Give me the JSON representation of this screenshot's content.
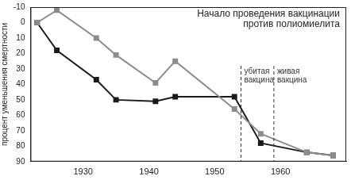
{
  "chart_data": {
    "type": "line",
    "title": "Начало проведения вакцинации против полиомиелита",
    "y_label": "процент уменьшения смертности",
    "x": [
      1923,
      1926,
      1932,
      1935,
      1941,
      1944,
      1953,
      1957,
      1964,
      1968
    ],
    "series": [
      {
        "color": "#8c8c8c",
        "marker": "square",
        "values": [
          0,
          -8,
          10,
          21,
          39,
          25,
          56,
          72,
          84,
          86
        ]
      },
      {
        "color": "#1a1a1a",
        "marker": "square",
        "values": [
          0,
          18,
          37,
          50,
          51,
          48,
          48,
          78,
          84,
          86
        ]
      }
    ],
    "xlim": [
      1922,
      1970
    ],
    "xticks": [
      1930,
      1940,
      1950,
      1960
    ],
    "ylim": [
      -10,
      90
    ],
    "yticks": [
      -10,
      0,
      10,
      20,
      30,
      40,
      50,
      60,
      70,
      80,
      90
    ],
    "grid": false,
    "annotations": [
      {
        "text": "убитая вакцина",
        "x": 1954,
        "line_style": "dashed"
      },
      {
        "text": "живая вакцина",
        "x": 1959,
        "line_style": "dashed"
      }
    ]
  }
}
